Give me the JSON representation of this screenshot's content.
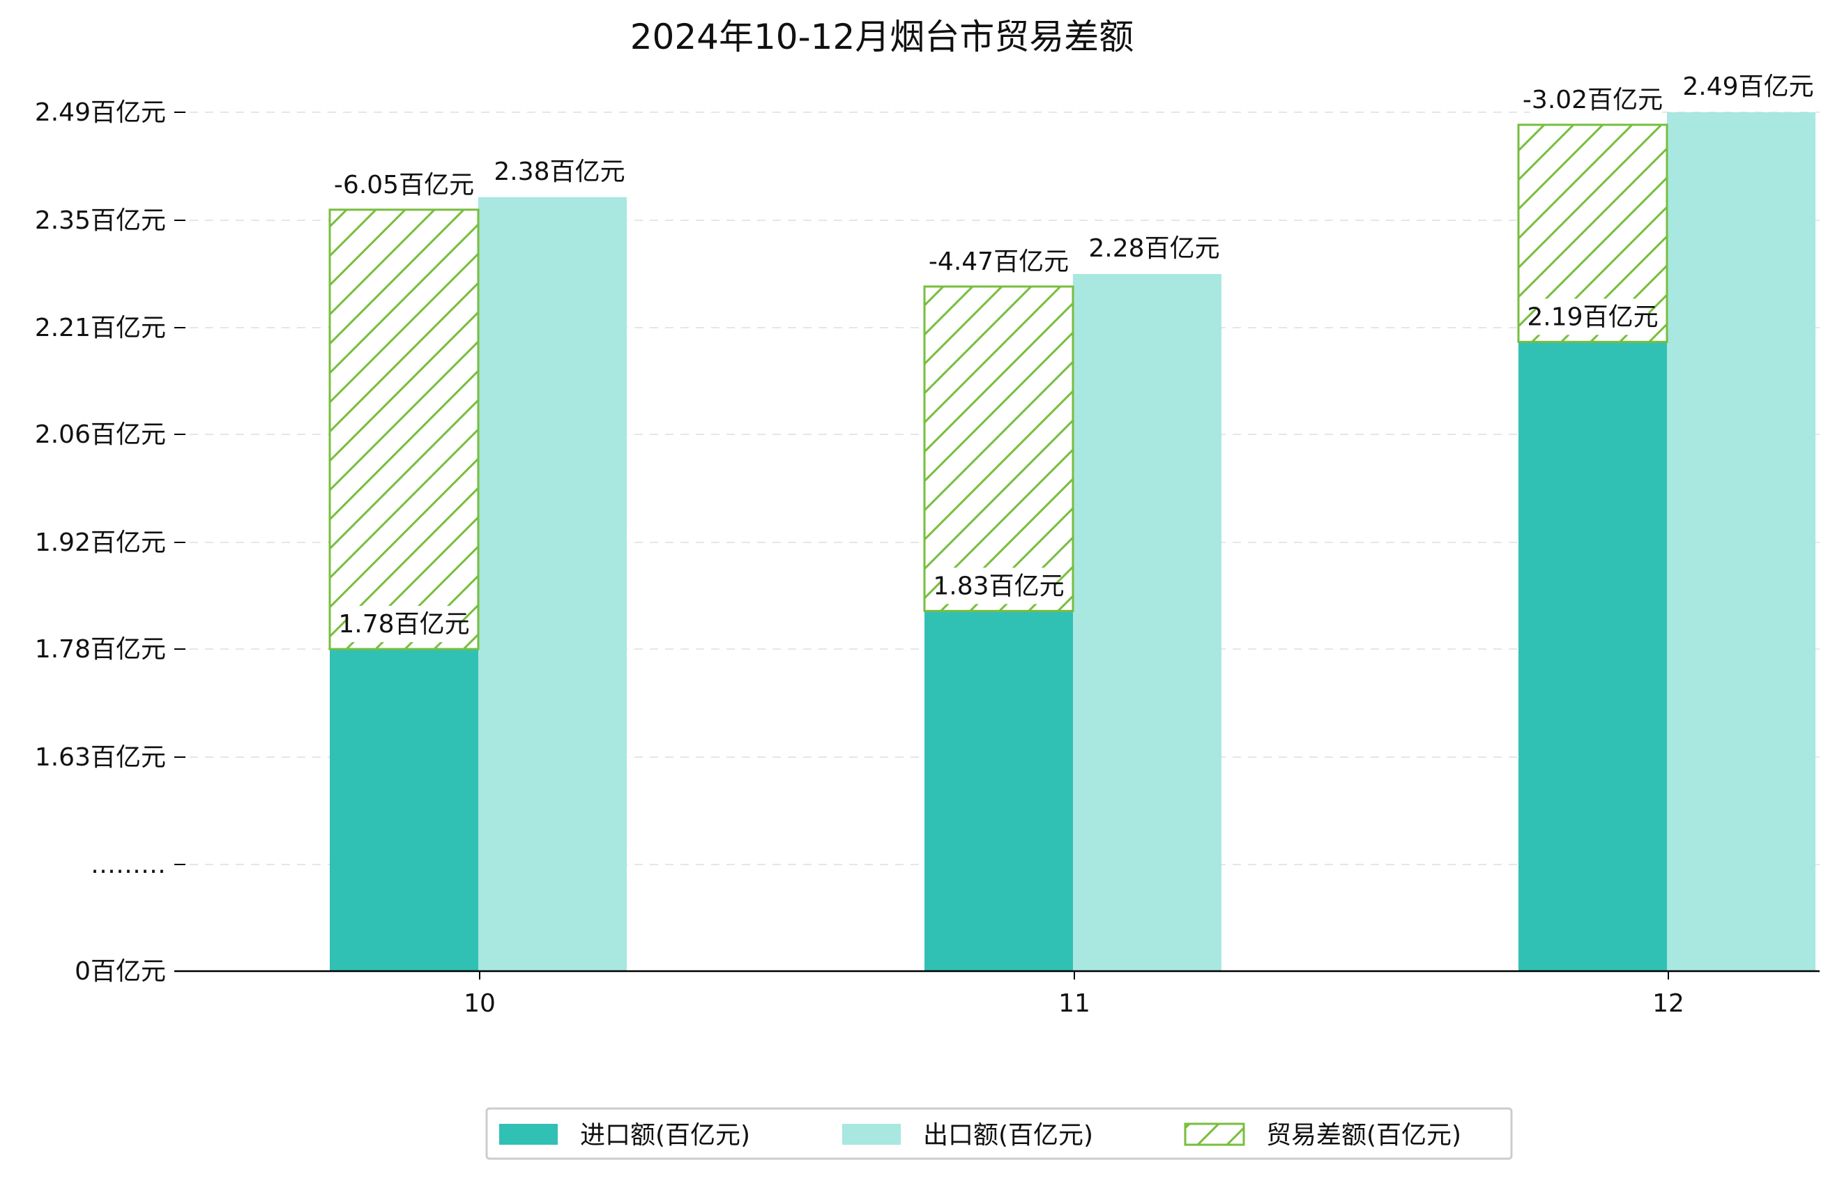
{
  "chart_data": {
    "type": "bar",
    "title": "2024年10-12月烟台市贸易差额",
    "xlabel": "",
    "ylabel": "",
    "categories": [
      "10",
      "11",
      "12"
    ],
    "series": [
      {
        "name": "进口额(百亿元)",
        "values": [
          1.78,
          1.83,
          2.19
        ],
        "labels": [
          "1.78百亿元",
          "1.83百亿元",
          "2.19百亿元"
        ],
        "color": "#31c0b4"
      },
      {
        "name": "出口额(百亿元)",
        "values": [
          2.38,
          2.28,
          2.49
        ],
        "labels": [
          "2.38百亿元",
          "2.28百亿元",
          "2.49百亿元"
        ],
        "color": "#a9e7e1"
      },
      {
        "name": "贸易差额(百亿元)",
        "values": [
          -6.05,
          -4.47,
          -3.02
        ],
        "labels": [
          "-6.05百亿元",
          "-4.47百亿元",
          "-3.02百亿元"
        ],
        "color": "#77be3d",
        "pattern": "hatch"
      }
    ],
    "y_ticks": [
      "0百亿元",
      "………",
      "1.63百亿元",
      "1.78百亿元",
      "1.92百亿元",
      "2.06百亿元",
      "2.21百亿元",
      "2.35百亿元",
      "2.49百亿元"
    ],
    "legend_position": "bottom-center",
    "grid": true,
    "axis_color": "#000000",
    "grid_color": "#e6e6e6"
  }
}
